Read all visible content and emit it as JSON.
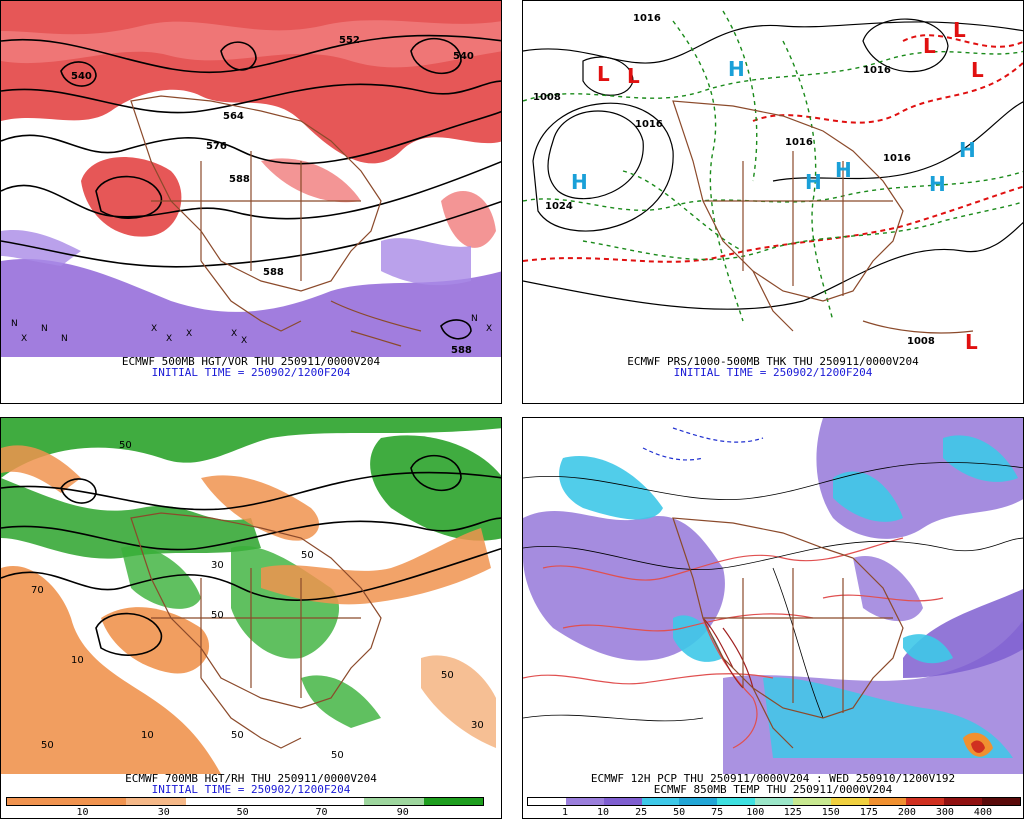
{
  "colors": {
    "vorticity_red": "#e23a3a",
    "vorticity_purple": "#8a5cd6",
    "rh_green": "#1e9e1e",
    "rh_orange": "#f0934f",
    "precip_purple": "#9b7fdc",
    "precip_cyan": "#3ec8e8",
    "borders": "#8b4a2b",
    "thickness_red": "#e01010",
    "thickness_green": "#1a8a1a",
    "high_cyan": "#1aa0d8",
    "caption_blue": "#1a1ad6"
  },
  "panel_top_left": {
    "title": "ECMWF 500MB HGT/VOR THU 250911/0000V204",
    "init": "INITIAL TIME = 250902/1200F204",
    "labels": [
      "540",
      "552",
      "564",
      "576",
      "588",
      "540",
      "588",
      "588"
    ]
  },
  "panel_top_right": {
    "title": "ECMWF PRS/1000-500MB THK THU 250911/0000V204",
    "init": "INITIAL TIME = 250902/1200F204",
    "highs": [
      "H",
      "H",
      "H",
      "H",
      "H",
      "H"
    ],
    "lows": [
      "L",
      "L",
      "L",
      "L",
      "L",
      "L"
    ],
    "isobars": [
      "1016",
      "1016",
      "1008",
      "1016",
      "1024",
      "1016",
      "1016",
      "1008"
    ]
  },
  "panel_bottom_left": {
    "title": "ECMWF 700MB HGT/RH THU 250911/0000V204",
    "init": "INITIAL TIME = 250902/1200F204",
    "colorbar_ticks": [
      "10",
      "30",
      "50",
      "70",
      "90"
    ],
    "colorbar_colors": [
      "#f0934f",
      "#f5b888",
      "#ffffff",
      "#ffffff",
      "#9ed69e",
      "#1e9e1e"
    ]
  },
  "panel_bottom_right": {
    "title": "ECMWF 12H PCP THU 250911/0000V204 : WED 250910/1200V192",
    "subtitle": "ECMWF 850MB TEMP THU 250911/0000V204",
    "colorbar_ticks": [
      "1",
      "10",
      "25",
      "50",
      "75",
      "100",
      "125",
      "150",
      "175",
      "200",
      "300",
      "400"
    ],
    "colorbar_colors": [
      "#ffffff",
      "#9b7fdc",
      "#7f5fd0",
      "#3ec8e8",
      "#22a6d6",
      "#3ee0e0",
      "#9be6c8",
      "#c8e890",
      "#f0d040",
      "#f09030",
      "#d03020",
      "#901010",
      "#5a0a0a"
    ]
  }
}
